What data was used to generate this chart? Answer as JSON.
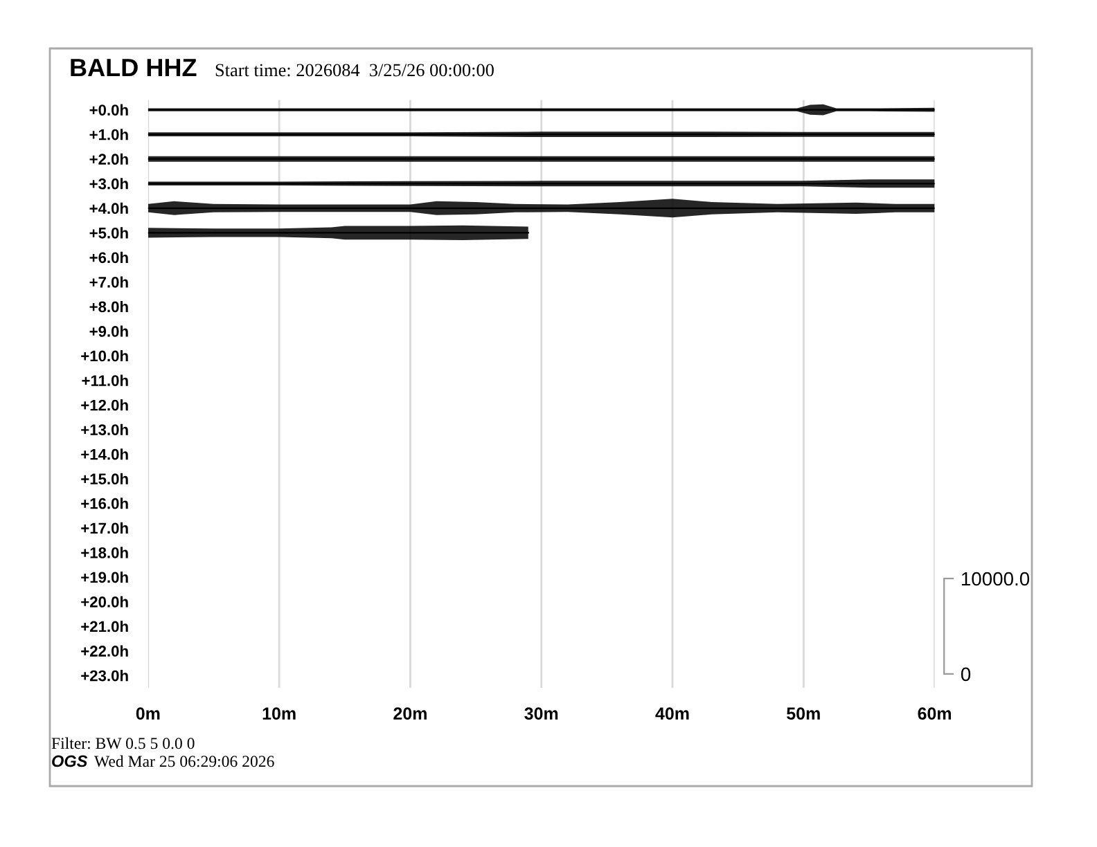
{
  "chart_data": {
    "type": "line",
    "title": "BALD HHZ",
    "subtitle": "Start time: 2026084  3/25/26 00:00:00",
    "annotations": [
      "Filter: BW 0.5 5 0.0 0",
      "OGS",
      "Wed Mar 25 06:29:06 2026"
    ],
    "xlim": [
      0,
      60
    ],
    "xticks": [
      {
        "value": 0,
        "label": "0m"
      },
      {
        "value": 10,
        "label": "10m"
      },
      {
        "value": 20,
        "label": "20m"
      },
      {
        "value": 30,
        "label": "30m"
      },
      {
        "value": 40,
        "label": "40m"
      },
      {
        "value": 50,
        "label": "50m"
      },
      {
        "value": 60,
        "label": "60m"
      }
    ],
    "ylim": [
      23.5,
      -0.4
    ],
    "yticks": [
      {
        "value": 0,
        "label": "+0.0h"
      },
      {
        "value": 1,
        "label": "+1.0h"
      },
      {
        "value": 2,
        "label": "+2.0h"
      },
      {
        "value": 3,
        "label": "+3.0h"
      },
      {
        "value": 4,
        "label": "+4.0h"
      },
      {
        "value": 5,
        "label": "+5.0h"
      },
      {
        "value": 6,
        "label": "+6.0h"
      },
      {
        "value": 7,
        "label": "+7.0h"
      },
      {
        "value": 8,
        "label": "+8.0h"
      },
      {
        "value": 9,
        "label": "+9.0h"
      },
      {
        "value": 10,
        "label": "+10.0h"
      },
      {
        "value": 11,
        "label": "+11.0h"
      },
      {
        "value": 12,
        "label": "+12.0h"
      },
      {
        "value": 13,
        "label": "+13.0h"
      },
      {
        "value": 14,
        "label": "+14.0h"
      },
      {
        "value": 15,
        "label": "+15.0h"
      },
      {
        "value": 16,
        "label": "+16.0h"
      },
      {
        "value": 17,
        "label": "+17.0h"
      },
      {
        "value": 18,
        "label": "+18.0h"
      },
      {
        "value": 19,
        "label": "+19.0h"
      },
      {
        "value": 20,
        "label": "+20.0h"
      },
      {
        "value": 21,
        "label": "+21.0h"
      },
      {
        "value": 22,
        "label": "+22.0h"
      },
      {
        "value": 23,
        "label": "+23.0h"
      }
    ],
    "y2lim": [
      -1450,
      60150
    ],
    "y2ticks": [
      0,
      {
        "value": 10000,
        "label": "10000.0"
      }
    ],
    "grid": "x",
    "legend": false,
    "series": [
      {
        "color": "#000000",
        "x": [
          0,
          10,
          20,
          30,
          40,
          49.5,
          50.5,
          51.5,
          52.5,
          55,
          60
        ],
        "values": [
          0,
          0,
          0,
          0,
          0,
          0,
          0,
          0,
          0,
          0,
          0
        ],
        "lower": [
          -0.06,
          -0.06,
          -0.06,
          -0.06,
          -0.06,
          -0.06,
          -0.2,
          -0.22,
          -0.06,
          -0.06,
          -0.08
        ],
        "upper": [
          0.06,
          0.06,
          0.06,
          0.06,
          0.06,
          0.06,
          0.2,
          0.22,
          0.06,
          0.06,
          0.08
        ]
      },
      {
        "color": "#000000",
        "x": [
          0,
          10,
          20,
          30,
          40,
          50,
          60
        ],
        "values": [
          1,
          1,
          1,
          1,
          1,
          1,
          1
        ],
        "lower": [
          0.92,
          0.92,
          0.92,
          0.89,
          0.89,
          0.9,
          0.9
        ],
        "upper": [
          1.08,
          1.08,
          1.08,
          1.11,
          1.11,
          1.1,
          1.1
        ]
      },
      {
        "color": "#000000",
        "x": [
          0,
          10,
          20,
          30,
          40,
          50,
          60
        ],
        "values": [
          2,
          2,
          2,
          2,
          2,
          2,
          2
        ],
        "lower": [
          1.89,
          1.89,
          1.89,
          1.89,
          1.89,
          1.89,
          1.89
        ],
        "upper": [
          2.11,
          2.11,
          2.11,
          2.11,
          2.11,
          2.11,
          2.11
        ]
      },
      {
        "color": "#000000",
        "x": [
          0,
          10,
          20,
          30,
          40,
          50,
          55,
          60
        ],
        "values": [
          3,
          3,
          3,
          3,
          3,
          3,
          3,
          3
        ],
        "lower": [
          2.92,
          2.92,
          2.9,
          2.89,
          2.89,
          2.89,
          2.83,
          2.83
        ],
        "upper": [
          3.08,
          3.08,
          3.1,
          3.11,
          3.11,
          3.11,
          3.17,
          3.17
        ]
      },
      {
        "color": "#000000",
        "x": [
          0,
          2,
          5,
          10,
          20,
          22,
          25,
          28,
          32,
          36,
          40,
          43,
          48,
          54,
          57,
          60
        ],
        "values": [
          4,
          4,
          4,
          4,
          4,
          4,
          4,
          4,
          4,
          4,
          4,
          4,
          4,
          4,
          4,
          4
        ],
        "lower": [
          3.83,
          3.72,
          3.83,
          3.85,
          3.85,
          3.72,
          3.75,
          3.83,
          3.85,
          3.75,
          3.62,
          3.75,
          3.83,
          3.77,
          3.83,
          3.83
        ],
        "upper": [
          4.17,
          4.28,
          4.17,
          4.15,
          4.15,
          4.28,
          4.25,
          4.17,
          4.15,
          4.25,
          4.38,
          4.25,
          4.17,
          4.23,
          4.17,
          4.17
        ]
      },
      {
        "color": "#000000",
        "x": [
          0,
          5,
          10,
          14,
          15,
          20,
          24,
          29
        ],
        "values": [
          5,
          5,
          5,
          5,
          5,
          5,
          5,
          5
        ],
        "lower": [
          4.8,
          4.83,
          4.83,
          4.78,
          4.72,
          4.72,
          4.7,
          4.75
        ],
        "upper": [
          5.2,
          5.17,
          5.17,
          5.22,
          5.28,
          5.28,
          5.3,
          5.25
        ]
      }
    ]
  }
}
